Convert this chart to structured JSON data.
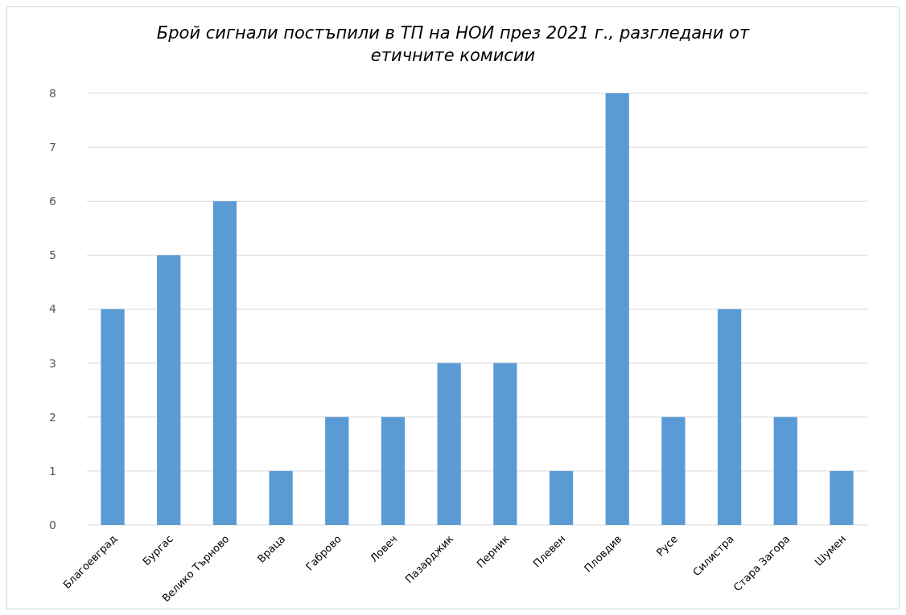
{
  "chart_data": {
    "type": "bar",
    "title": "Брой сигнали постъпили в ТП на НОИ през 2021 г., разгледани от етичните комисии",
    "categories": [
      "Благоевград",
      "Бургас",
      "Велико Търново",
      "Враца",
      "Габрово",
      "Ловеч",
      "Пазарджик",
      "Перник",
      "Плевен",
      "Пловдив",
      "Русе",
      "Силистра",
      "Стара Загора",
      "Шумен"
    ],
    "values": [
      4,
      5,
      6,
      1,
      2,
      2,
      3,
      3,
      1,
      8,
      2,
      4,
      2,
      1
    ],
    "color": "#5b9bd5",
    "ylim": [
      0,
      8
    ],
    "yticks": [
      0,
      1,
      2,
      3,
      4,
      5,
      6,
      7,
      8
    ],
    "grid": "y"
  }
}
